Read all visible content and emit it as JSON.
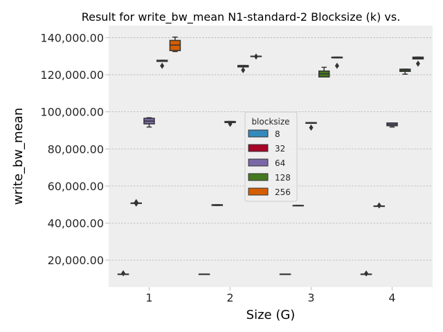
{
  "chart_data": {
    "type": "box",
    "title": "Result for write_bw_mean N1-standard-2 Blocksize (k) vs.",
    "xlabel": "Size (G)",
    "ylabel": "write_bw_mean",
    "categories": [
      "1",
      "2",
      "3",
      "4"
    ],
    "ylim": [
      5500,
      146500
    ],
    "yticks": [
      20000,
      40000,
      60000,
      80000,
      100000,
      120000,
      140000
    ],
    "ytick_labels": [
      "20,000.00",
      "40,000.00",
      "60,000.00",
      "80,000.00",
      "100,000.00",
      "120,000.00",
      "140,000.00"
    ],
    "grid": true,
    "legend": {
      "title": "blocksize",
      "position": "center"
    },
    "series": [
      {
        "name": "8",
        "color": "#348abd",
        "boxes": [
          {
            "whislo": 12500,
            "q1": 12500,
            "med": 12500,
            "q3": 12500,
            "whishi": 12500,
            "fliers": [
              12900
            ]
          },
          {
            "whislo": 12500,
            "q1": 12500,
            "med": 12500,
            "q3": 12500,
            "whishi": 12500,
            "fliers": []
          },
          {
            "whislo": 12500,
            "q1": 12500,
            "med": 12500,
            "q3": 12500,
            "whishi": 12500,
            "fliers": []
          },
          {
            "whislo": 12500,
            "q1": 12500,
            "med": 12500,
            "q3": 12500,
            "whishi": 12500,
            "fliers": [
              12800
            ]
          }
        ]
      },
      {
        "name": "32",
        "color": "#a60628",
        "boxes": [
          {
            "whislo": 50800,
            "q1": 50800,
            "med": 50800,
            "q3": 50800,
            "whishi": 50800,
            "fliers": [
              50500,
              51300
            ]
          },
          {
            "whislo": 49500,
            "q1": 49500,
            "med": 49700,
            "q3": 49900,
            "whishi": 49900,
            "fliers": []
          },
          {
            "whislo": 49500,
            "q1": 49500,
            "med": 49500,
            "q3": 49500,
            "whishi": 49500,
            "fliers": []
          },
          {
            "whislo": 49200,
            "q1": 49200,
            "med": 49200,
            "q3": 49200,
            "whishi": 49200,
            "fliers": [
              49500
            ]
          }
        ]
      },
      {
        "name": "64",
        "color": "#7a68a6",
        "boxes": [
          {
            "whislo": 91800,
            "q1": 93500,
            "med": 95000,
            "q3": 96500,
            "whishi": 96800,
            "fliers": []
          },
          {
            "whislo": 94200,
            "q1": 94200,
            "med": 94500,
            "q3": 94800,
            "whishi": 94800,
            "fliers": [
              93500
            ]
          },
          {
            "whislo": 93800,
            "q1": 93800,
            "med": 94000,
            "q3": 94200,
            "whishi": 94200,
            "fliers": [
              91500
            ]
          },
          {
            "whislo": 91800,
            "q1": 92500,
            "med": 93200,
            "q3": 94000,
            "whishi": 94000,
            "fliers": []
          }
        ]
      },
      {
        "name": "128",
        "color": "#467821",
        "boxes": [
          {
            "whislo": 127200,
            "q1": 127200,
            "med": 127500,
            "q3": 127800,
            "whishi": 127800,
            "fliers": [
              124800
            ]
          },
          {
            "whislo": 124200,
            "q1": 124200,
            "med": 124600,
            "q3": 125000,
            "whishi": 125000,
            "fliers": [
              122500
            ]
          },
          {
            "whislo": 118800,
            "q1": 118800,
            "med": 120500,
            "q3": 122000,
            "whishi": 124000,
            "fliers": []
          },
          {
            "whislo": 120300,
            "q1": 121800,
            "med": 122500,
            "q3": 123000,
            "whishi": 123000,
            "fliers": []
          }
        ]
      },
      {
        "name": "256",
        "color": "#d55e00",
        "boxes": [
          {
            "whislo": 132500,
            "q1": 133000,
            "med": 136000,
            "q3": 138500,
            "whishi": 140300,
            "fliers": []
          },
          {
            "whislo": 130000,
            "q1": 130000,
            "med": 130000,
            "q3": 130000,
            "whishi": 130000,
            "fliers": [
              129800
            ]
          },
          {
            "whislo": 129100,
            "q1": 129100,
            "med": 129300,
            "q3": 129500,
            "whishi": 129500,
            "fliers": [
              124800
            ]
          },
          {
            "whislo": 128500,
            "q1": 128500,
            "med": 129000,
            "q3": 129500,
            "whishi": 129500,
            "fliers": [
              126000
            ]
          }
        ]
      }
    ]
  }
}
